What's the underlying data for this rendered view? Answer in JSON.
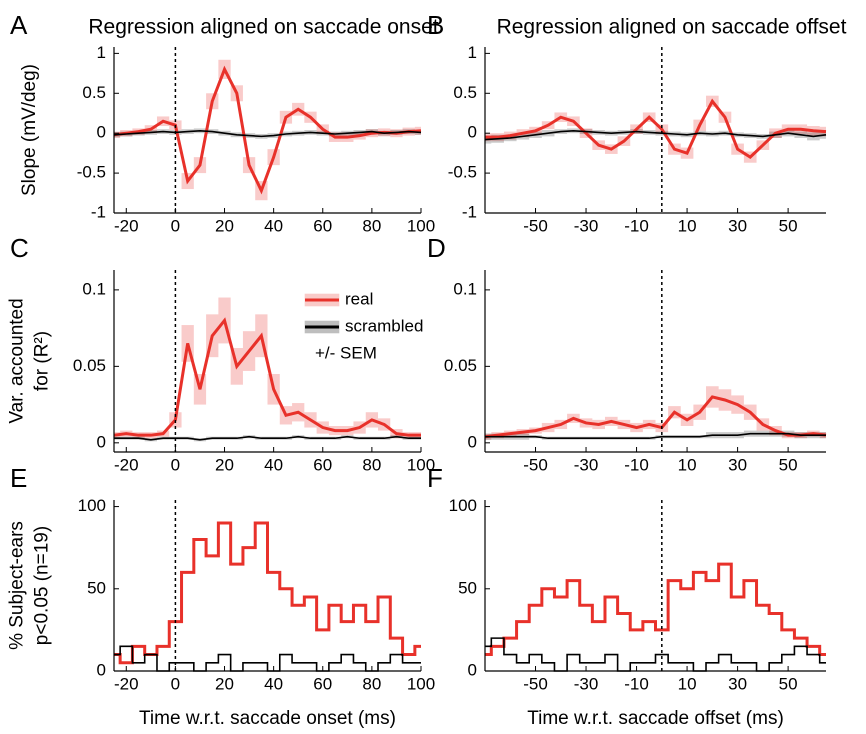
{
  "chart_data": [
    {
      "type": "line",
      "panel": "A",
      "title": "Regression aligned on saccade onset",
      "ylabel": [
        "Slope (mV/deg)"
      ],
      "x": [
        -25,
        -20,
        -15,
        -10,
        -5,
        0,
        5,
        10,
        15,
        20,
        25,
        30,
        35,
        40,
        45,
        50,
        55,
        60,
        65,
        70,
        75,
        80,
        85,
        90,
        95,
        100
      ],
      "series": [
        {
          "color": "#e8312a",
          "values": [
            -0.02,
            0,
            0.02,
            0.05,
            0.15,
            0.1,
            -0.6,
            -0.4,
            0.4,
            0.8,
            0.5,
            -0.4,
            -0.72,
            -0.3,
            0.2,
            0.3,
            0.2,
            0.05,
            -0.05,
            -0.05,
            -0.03,
            0,
            0.01,
            0,
            0.02,
            0.03
          ],
          "errors": [
            0.04,
            0.04,
            0.04,
            0.05,
            0.06,
            0.06,
            0.1,
            0.1,
            0.1,
            0.12,
            0.1,
            0.1,
            0.12,
            0.1,
            0.08,
            0.08,
            0.07,
            0.06,
            0.06,
            0.06,
            0.05,
            0.05,
            0.05,
            0.05,
            0.05,
            0.05
          ]
        },
        {
          "color": "#000000",
          "values": [
            -0.02,
            -0.01,
            0,
            0.01,
            0.02,
            0.01,
            0.02,
            0.03,
            0.02,
            0,
            -0.02,
            -0.03,
            -0.04,
            -0.03,
            -0.01,
            0,
            0.01,
            0,
            -0.01,
            0,
            0.01,
            0.02,
            0,
            0.01,
            0.02,
            0.01
          ],
          "errors": [
            0.03,
            0.03,
            0.03,
            0.03,
            0.03,
            0.03,
            0.03,
            0.03,
            0.03,
            0.03,
            0.03,
            0.03,
            0.03,
            0.03,
            0.03,
            0.03,
            0.03,
            0.03,
            0.03,
            0.03,
            0.03,
            0.03,
            0.03,
            0.03,
            0.03,
            0.03
          ]
        }
      ],
      "xlim": [
        -25,
        100
      ],
      "xticks": [
        -20,
        0,
        20,
        40,
        60,
        80,
        100
      ],
      "ylim": [
        -1,
        1.08
      ],
      "yticks": [
        -1,
        -0.5,
        0,
        0.5,
        1
      ],
      "vline": 0
    },
    {
      "type": "line",
      "panel": "B",
      "title": "Regression aligned on saccade offset",
      "x": [
        -70,
        -65,
        -60,
        -55,
        -50,
        -45,
        -40,
        -35,
        -30,
        -25,
        -20,
        -15,
        -10,
        -5,
        0,
        5,
        10,
        15,
        20,
        25,
        30,
        35,
        40,
        45,
        50,
        55,
        60,
        65
      ],
      "series": [
        {
          "color": "#e8312a",
          "values": [
            -0.05,
            -0.05,
            -0.03,
            0,
            0.03,
            0.1,
            0.2,
            0.15,
            0,
            -0.15,
            -0.2,
            -0.1,
            0.05,
            0.2,
            0.05,
            -0.2,
            -0.25,
            0.1,
            0.4,
            0.2,
            -0.2,
            -0.3,
            -0.15,
            0,
            0.05,
            0.05,
            0.03,
            0.02
          ],
          "errors": [
            0.05,
            0.05,
            0.05,
            0.05,
            0.05,
            0.05,
            0.06,
            0.06,
            0.06,
            0.06,
            0.06,
            0.06,
            0.06,
            0.06,
            0.06,
            0.07,
            0.07,
            0.07,
            0.07,
            0.07,
            0.07,
            0.07,
            0.06,
            0.06,
            0.06,
            0.06,
            0.06,
            0.06
          ]
        },
        {
          "color": "#000000",
          "values": [
            -0.08,
            -0.07,
            -0.06,
            -0.04,
            -0.02,
            0,
            0.02,
            0.03,
            0.02,
            0.01,
            0,
            0.01,
            0.02,
            0.01,
            0,
            -0.01,
            -0.02,
            0,
            -0.01,
            0,
            -0.02,
            -0.03,
            -0.04,
            -0.02,
            0,
            -0.02,
            -0.04,
            -0.02
          ],
          "errors": [
            0.05,
            0.05,
            0.04,
            0.04,
            0.04,
            0.04,
            0.03,
            0.03,
            0.03,
            0.03,
            0.03,
            0.03,
            0.03,
            0.03,
            0.03,
            0.03,
            0.03,
            0.03,
            0.03,
            0.03,
            0.03,
            0.03,
            0.03,
            0.04,
            0.04,
            0.04,
            0.05,
            0.05
          ]
        }
      ],
      "xlim": [
        -70,
        65
      ],
      "xticks": [
        -50,
        -30,
        -10,
        10,
        30,
        50
      ],
      "ylim": [
        -1,
        1.08
      ],
      "yticks": [
        -1,
        -0.5,
        0,
        0.5,
        1
      ],
      "vline": 0
    },
    {
      "type": "line",
      "panel": "C",
      "ylabel": [
        "Var. accounted",
        "for (R²)"
      ],
      "x": [
        -25,
        -20,
        -15,
        -10,
        -5,
        0,
        5,
        10,
        15,
        20,
        25,
        30,
        35,
        40,
        45,
        50,
        55,
        60,
        65,
        70,
        75,
        80,
        85,
        90,
        95,
        100
      ],
      "series": [
        {
          "name": "real",
          "color": "#e8312a",
          "values": [
            0.005,
            0.006,
            0.005,
            0.005,
            0.006,
            0.015,
            0.065,
            0.035,
            0.07,
            0.08,
            0.05,
            0.06,
            0.07,
            0.035,
            0.018,
            0.02,
            0.015,
            0.01,
            0.008,
            0.008,
            0.01,
            0.015,
            0.012,
            0.006,
            0.005,
            0.005
          ],
          "errors": [
            0.002,
            0.002,
            0.002,
            0.002,
            0.002,
            0.005,
            0.012,
            0.01,
            0.014,
            0.015,
            0.012,
            0.013,
            0.014,
            0.01,
            0.006,
            0.006,
            0.005,
            0.004,
            0.003,
            0.003,
            0.004,
            0.005,
            0.004,
            0.003,
            0.002,
            0.002
          ]
        },
        {
          "name": "scrambled",
          "color": "#000000",
          "values": [
            0.003,
            0.003,
            0.003,
            0.002,
            0.003,
            0.003,
            0.003,
            0.002,
            0.003,
            0.003,
            0.003,
            0.004,
            0.003,
            0.003,
            0.003,
            0.004,
            0.003,
            0.003,
            0.003,
            0.004,
            0.003,
            0.003,
            0.003,
            0.004,
            0.003,
            0.003
          ],
          "errors": [
            0.001,
            0.001,
            0.001,
            0.001,
            0.001,
            0.001,
            0.001,
            0.001,
            0.001,
            0.001,
            0.001,
            0.001,
            0.001,
            0.001,
            0.001,
            0.001,
            0.001,
            0.001,
            0.001,
            0.001,
            0.001,
            0.001,
            0.001,
            0.001,
            0.001,
            0.001
          ]
        }
      ],
      "legend": "upper right",
      "legend_note": "+/- SEM",
      "xlim": [
        -25,
        100
      ],
      "xticks": [
        -20,
        0,
        20,
        40,
        60,
        80,
        100
      ],
      "ylim": [
        -0.006,
        0.113
      ],
      "yticks": [
        0,
        0.05,
        0.1
      ],
      "vline": 0
    },
    {
      "type": "line",
      "panel": "D",
      "x": [
        -70,
        -65,
        -60,
        -55,
        -50,
        -45,
        -40,
        -35,
        -30,
        -25,
        -20,
        -15,
        -10,
        -5,
        0,
        5,
        10,
        15,
        20,
        25,
        30,
        35,
        40,
        45,
        50,
        55,
        60,
        65
      ],
      "series": [
        {
          "color": "#e8312a",
          "values": [
            0.004,
            0.005,
            0.006,
            0.007,
            0.008,
            0.01,
            0.012,
            0.016,
            0.013,
            0.012,
            0.014,
            0.012,
            0.01,
            0.012,
            0.01,
            0.02,
            0.015,
            0.02,
            0.03,
            0.028,
            0.025,
            0.02,
            0.012,
            0.008,
            0.005,
            0.005,
            0.006,
            0.005
          ],
          "errors": [
            0.002,
            0.002,
            0.002,
            0.002,
            0.002,
            0.003,
            0.003,
            0.003,
            0.003,
            0.003,
            0.003,
            0.003,
            0.003,
            0.003,
            0.003,
            0.004,
            0.004,
            0.005,
            0.007,
            0.007,
            0.006,
            0.005,
            0.004,
            0.003,
            0.002,
            0.002,
            0.002,
            0.002
          ]
        },
        {
          "color": "#000000",
          "values": [
            0.004,
            0.004,
            0.004,
            0.004,
            0.004,
            0.003,
            0.003,
            0.003,
            0.003,
            0.003,
            0.003,
            0.003,
            0.003,
            0.003,
            0.004,
            0.004,
            0.004,
            0.004,
            0.005,
            0.005,
            0.005,
            0.006,
            0.006,
            0.006,
            0.006,
            0.005,
            0.005,
            0.005
          ],
          "errors": [
            0.002,
            0.002,
            0.002,
            0.002,
            0.001,
            0.001,
            0.001,
            0.001,
            0.001,
            0.001,
            0.001,
            0.001,
            0.001,
            0.001,
            0.001,
            0.001,
            0.001,
            0.001,
            0.002,
            0.002,
            0.002,
            0.002,
            0.002,
            0.002,
            0.002,
            0.002,
            0.002,
            0.002
          ]
        }
      ],
      "xlim": [
        -70,
        65
      ],
      "xticks": [
        -50,
        -30,
        -10,
        10,
        30,
        50
      ],
      "ylim": [
        -0.006,
        0.113
      ],
      "yticks": [
        0,
        0.05,
        0.1
      ],
      "vline": 0
    },
    {
      "type": "step",
      "panel": "E",
      "ylabel": [
        "% Subject-ears",
        "p<0.05 (n=19)"
      ],
      "xlabel": "Time w.r.t. saccade onset (ms)",
      "x": [
        -25,
        -20,
        -15,
        -10,
        -5,
        0,
        5,
        10,
        15,
        20,
        25,
        30,
        35,
        40,
        45,
        50,
        55,
        60,
        65,
        70,
        75,
        80,
        85,
        90,
        95,
        100
      ],
      "series": [
        {
          "color": "#e8312a",
          "values": [
            10,
            5,
            15,
            10,
            15,
            30,
            60,
            80,
            70,
            90,
            65,
            75,
            90,
            60,
            50,
            40,
            45,
            25,
            40,
            30,
            40,
            30,
            45,
            20,
            10,
            15
          ]
        },
        {
          "color": "#000000",
          "values": [
            10,
            15,
            5,
            10,
            0,
            5,
            5,
            0,
            5,
            10,
            0,
            5,
            5,
            0,
            10,
            5,
            5,
            0,
            5,
            10,
            5,
            0,
            5,
            10,
            5,
            5
          ]
        }
      ],
      "xlim": [
        -25,
        100
      ],
      "xticks": [
        -20,
        0,
        20,
        40,
        60,
        80,
        100
      ],
      "ylim": [
        0,
        104
      ],
      "yticks": [
        0,
        50,
        100
      ],
      "vline": 0
    },
    {
      "type": "step",
      "panel": "F",
      "xlabel": "Time w.r.t. saccade offset (ms)",
      "x": [
        -70,
        -65,
        -60,
        -55,
        -50,
        -45,
        -40,
        -35,
        -30,
        -25,
        -20,
        -15,
        -10,
        -5,
        0,
        5,
        10,
        15,
        20,
        25,
        30,
        35,
        40,
        45,
        50,
        55,
        60,
        65
      ],
      "series": [
        {
          "color": "#e8312a",
          "values": [
            10,
            15,
            20,
            30,
            40,
            50,
            45,
            55,
            40,
            30,
            45,
            35,
            25,
            30,
            25,
            55,
            50,
            60,
            55,
            65,
            45,
            55,
            40,
            35,
            25,
            20,
            15,
            10
          ]
        },
        {
          "color": "#000000",
          "values": [
            15,
            20,
            10,
            5,
            10,
            5,
            0,
            10,
            5,
            5,
            10,
            0,
            5,
            5,
            10,
            5,
            5,
            0,
            5,
            10,
            5,
            5,
            0,
            5,
            10,
            15,
            10,
            5
          ]
        }
      ],
      "xlim": [
        -70,
        65
      ],
      "xticks": [
        -50,
        -30,
        -10,
        10,
        30,
        50
      ],
      "ylim": [
        0,
        104
      ],
      "yticks": [
        0,
        50,
        100
      ],
      "vline": 0
    }
  ]
}
